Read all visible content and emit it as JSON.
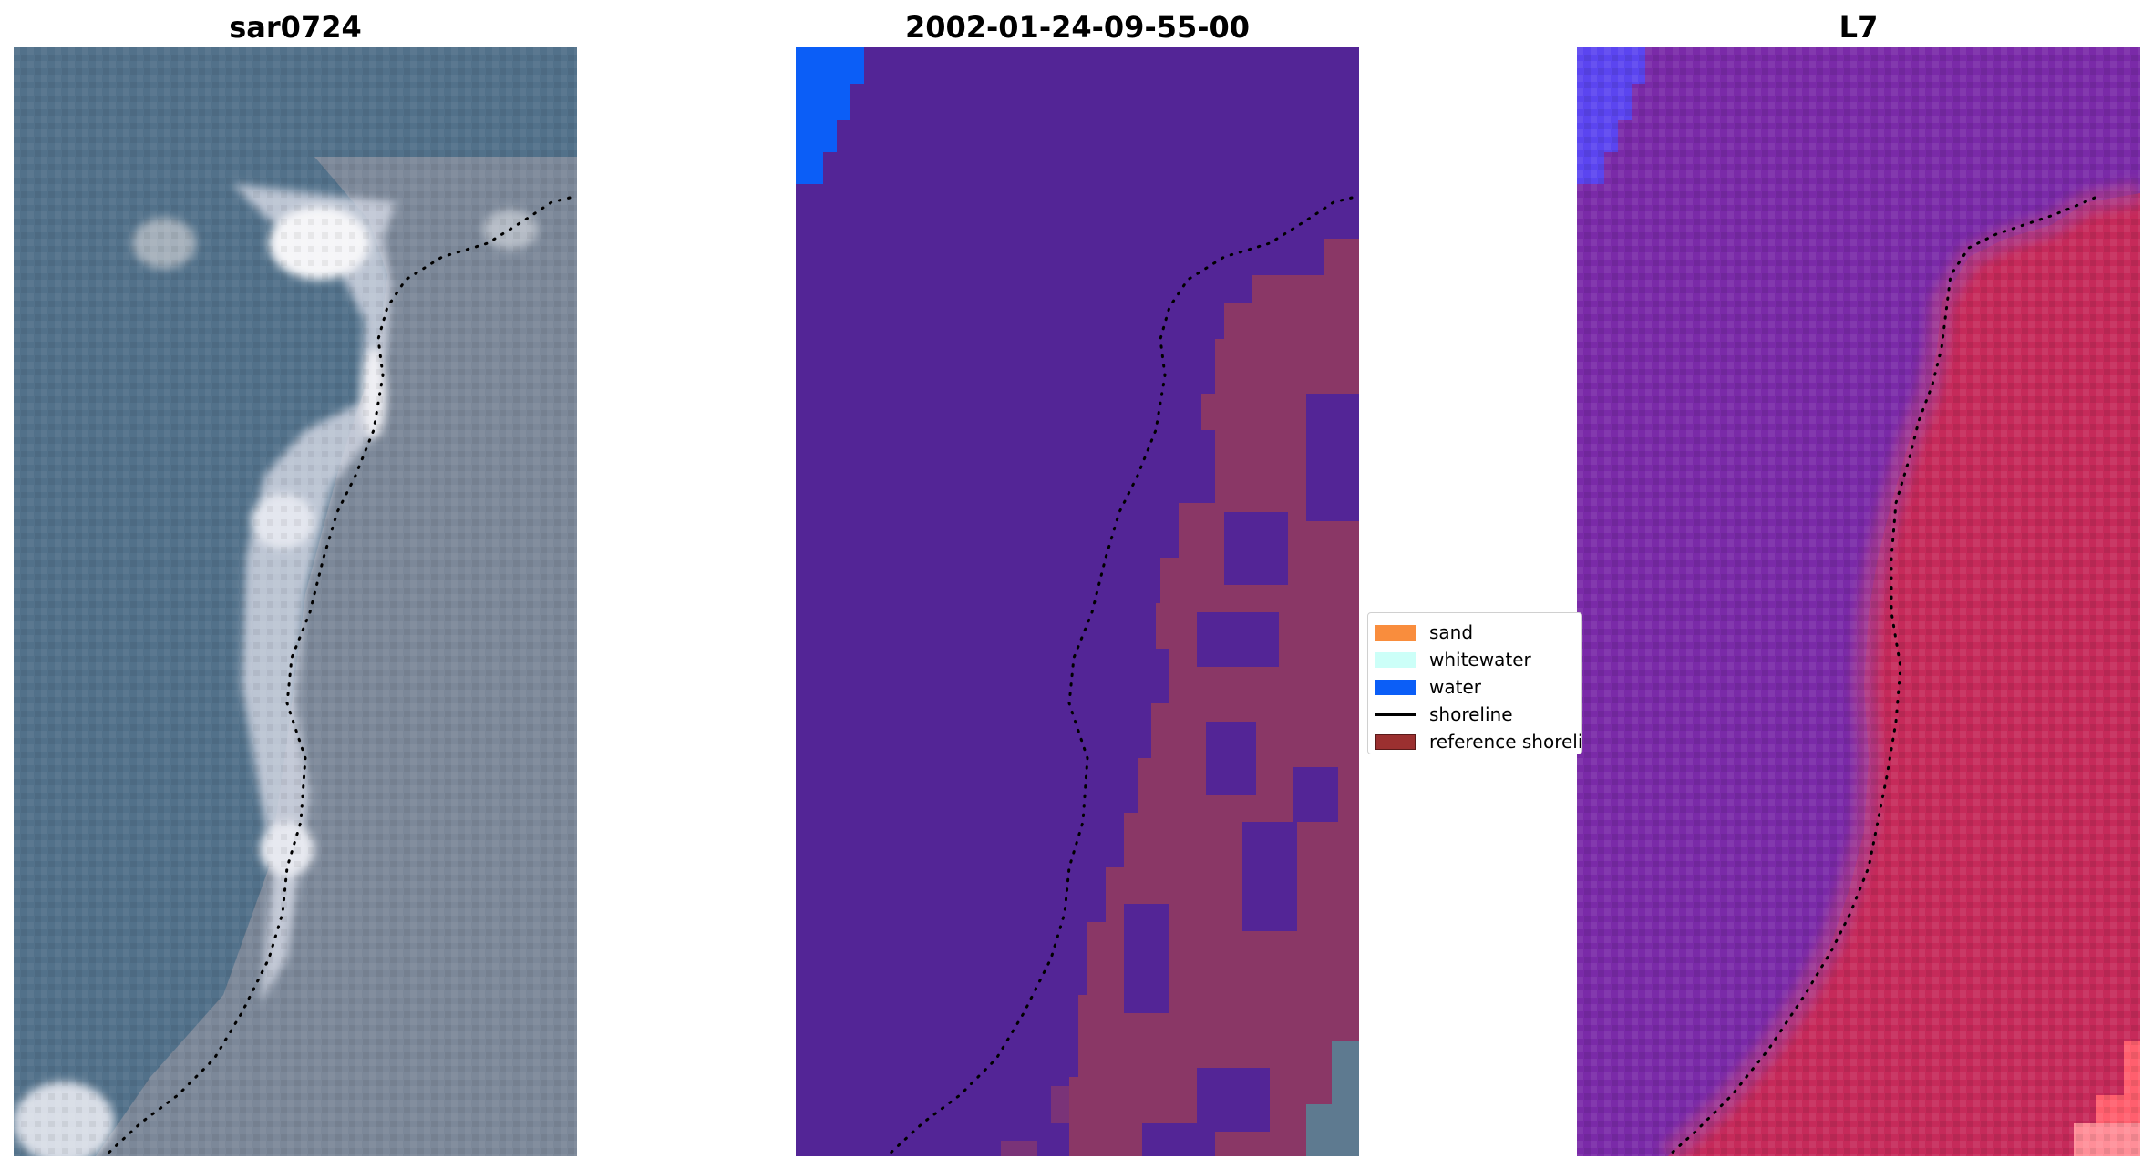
{
  "panels": [
    {
      "title": "sar0724"
    },
    {
      "title": "2002-01-24-09-55-00"
    },
    {
      "title": "L7"
    }
  ],
  "legend": {
    "items": [
      {
        "label": "sand",
        "color": "#f98d3d",
        "kind": "patch"
      },
      {
        "label": "whitewater",
        "color": "#ccfff8",
        "kind": "patch"
      },
      {
        "label": "water",
        "color": "#0b5ef7",
        "kind": "patch"
      },
      {
        "label": "shoreline",
        "color": "#000000",
        "kind": "line"
      },
      {
        "label": "reference shoreline",
        "color": "#9b3030",
        "kind": "patch"
      }
    ]
  },
  "colors": {
    "rgb_water": "#4e6e84",
    "rgb_land": "#7b8796",
    "classified_background": "#532596",
    "classified_land": "#8a3766",
    "classified_water": "#0b5ef7",
    "mndwi_water": "#7a2aa8",
    "mndwi_land": "#c7285a"
  }
}
